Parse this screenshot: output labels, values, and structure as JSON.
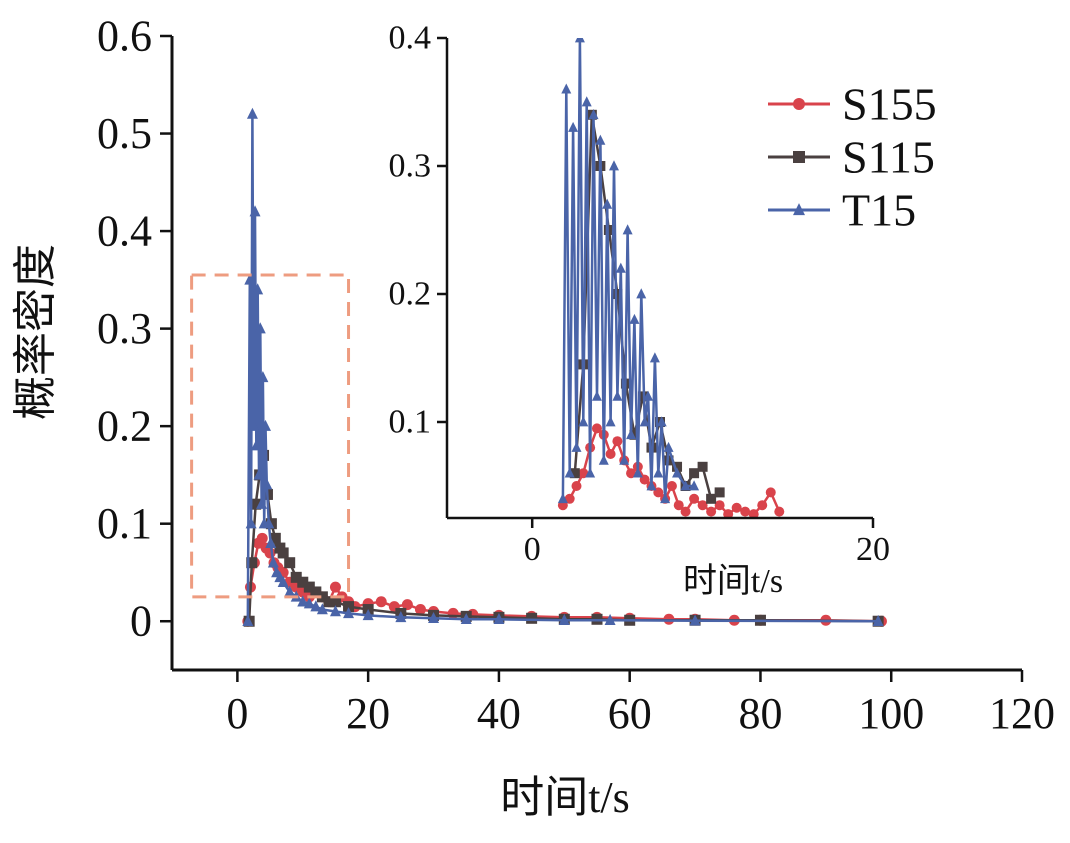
{
  "colors": {
    "S155": "#d9434b",
    "S115": "#4a4040",
    "T15": "#4a64a8",
    "zoom_box": "#ee9c80",
    "axis": "#111111"
  },
  "legend": [
    {
      "label": "S155",
      "marker": "circle"
    },
    {
      "label": "S115",
      "marker": "square"
    },
    {
      "label": "T15",
      "marker": "triangle"
    }
  ],
  "chart_data": [
    {
      "type": "line",
      "xlabel": "时间t/s",
      "ylabel": "概率密度",
      "xlim": [
        -10,
        120
      ],
      "ylim": [
        -0.05,
        0.6
      ],
      "xticks": [
        "0",
        "20",
        "40",
        "60",
        "80",
        "100",
        "120"
      ],
      "yticks": [
        "0",
        "0.1",
        "0.2",
        "0.3",
        "0.4",
        "0.5",
        "0.6"
      ],
      "zoom_region": {
        "x": [
          -7,
          17
        ],
        "y": [
          0.025,
          0.355
        ]
      },
      "series": [
        {
          "name": "S155",
          "marker": "circle",
          "x": [
            1.6,
            2.0,
            2.6,
            3.2,
            3.8,
            4.4,
            5.0,
            5.6,
            6.2,
            7,
            8,
            9,
            10,
            11,
            12,
            13,
            14,
            15,
            16,
            17,
            18,
            20,
            22,
            24,
            26,
            28,
            30,
            33,
            36,
            40,
            45,
            50,
            55,
            60,
            66,
            70,
            76,
            80,
            90,
            98.5
          ],
          "y": [
            0,
            0.035,
            0.06,
            0.08,
            0.085,
            0.075,
            0.07,
            0.06,
            0.055,
            0.05,
            0.04,
            0.035,
            0.03,
            0.025,
            0.03,
            0.025,
            0.02,
            0.035,
            0.025,
            0.02,
            0.015,
            0.018,
            0.02,
            0.015,
            0.017,
            0.012,
            0.01,
            0.008,
            0.007,
            0.006,
            0.005,
            0.004,
            0.004,
            0.003,
            0.002,
            0.002,
            0.001,
            0.001,
            0.001,
            0
          ]
        },
        {
          "name": "S115",
          "marker": "square",
          "x": [
            1.8,
            2.2,
            2.8,
            3.4,
            4.0,
            4.6,
            5.2,
            5.8,
            6.5,
            7,
            8,
            9,
            10,
            11,
            12,
            13,
            14,
            15,
            17,
            20,
            25,
            30,
            35,
            40,
            45,
            50,
            55,
            60,
            70,
            80,
            98
          ],
          "y": [
            0,
            0.06,
            0.12,
            0.15,
            0.17,
            0.13,
            0.1,
            0.085,
            0.075,
            0.07,
            0.06,
            0.045,
            0.04,
            0.035,
            0.03,
            0.025,
            0.02,
            0.02,
            0.015,
            0.012,
            0.008,
            0.006,
            0.005,
            0.004,
            0.003,
            0.002,
            0.002,
            0.001,
            0.001,
            0.001,
            0
          ]
        },
        {
          "name": "T15",
          "marker": "triangle",
          "x": [
            1.6,
            1.9,
            2.1,
            2.3,
            2.5,
            2.7,
            2.9,
            3.1,
            3.3,
            3.5,
            3.7,
            3.9,
            4.1,
            4.3,
            4.5,
            4.8,
            5.1,
            5.5,
            6,
            6.5,
            7,
            8,
            9,
            10,
            11,
            12,
            13,
            15,
            17,
            20,
            25,
            30,
            35,
            40,
            50,
            57,
            70,
            98
          ],
          "y": [
            0,
            0.35,
            0.1,
            0.52,
            0.2,
            0.42,
            0.18,
            0.34,
            0.15,
            0.3,
            0.12,
            0.25,
            0.1,
            0.2,
            0.14,
            0.1,
            0.08,
            0.06,
            0.05,
            0.045,
            0.04,
            0.03,
            0.025,
            0.02,
            0.018,
            0.015,
            0.012,
            0.01,
            0.008,
            0.006,
            0.004,
            0.003,
            0.002,
            0.002,
            0.001,
            0.001,
            0.0005,
            0
          ]
        }
      ]
    },
    {
      "type": "line",
      "xlabel": "时间t/s",
      "ylabel": "",
      "xlim": [
        -5,
        20
      ],
      "ylim": [
        0.025,
        0.4
      ],
      "xticks": [
        "0",
        "20"
      ],
      "yticks": [
        "0.1",
        "0.2",
        "0.3",
        "0.4"
      ],
      "series": [
        {
          "name": "S155",
          "marker": "circle",
          "x": [
            1.8,
            2.2,
            2.6,
            3.0,
            3.4,
            3.8,
            4.2,
            4.6,
            5.0,
            5.4,
            5.8,
            6.2,
            6.6,
            7.0,
            7.4,
            7.8,
            8.2,
            8.6,
            9.0,
            9.5,
            10,
            10.5,
            11,
            11.5,
            12,
            12.5,
            13,
            13.5,
            14,
            14.5
          ],
          "y": [
            0.035,
            0.04,
            0.05,
            0.06,
            0.08,
            0.095,
            0.09,
            0.075,
            0.085,
            0.07,
            0.06,
            0.065,
            0.055,
            0.05,
            0.045,
            0.04,
            0.05,
            0.035,
            0.03,
            0.04,
            0.035,
            0.03,
            0.035,
            0.028,
            0.033,
            0.03,
            0.028,
            0.035,
            0.045,
            0.03
          ]
        },
        {
          "name": "S115",
          "marker": "square",
          "x": [
            2.5,
            3.0,
            3.5,
            4.0,
            4.5,
            5.0,
            5.5,
            6.0,
            6.5,
            7.0,
            7.5,
            8.0,
            8.5,
            9.0,
            9.5,
            10,
            10.5,
            11
          ],
          "y": [
            0.06,
            0.145,
            0.34,
            0.3,
            0.25,
            0.2,
            0.13,
            0.09,
            0.12,
            0.08,
            0.1,
            0.07,
            0.065,
            0.05,
            0.06,
            0.065,
            0.04,
            0.045
          ]
        },
        {
          "name": "T15",
          "marker": "triangle",
          "x": [
            1.8,
            2.0,
            2.2,
            2.4,
            2.6,
            2.8,
            3.0,
            3.2,
            3.4,
            3.6,
            3.8,
            4.0,
            4.2,
            4.4,
            4.6,
            4.8,
            5.0,
            5.2,
            5.4,
            5.6,
            5.8,
            6.0,
            6.2,
            6.4,
            6.6,
            6.8,
            7.0,
            7.2,
            7.4,
            7.6,
            7.8,
            8.0,
            8.5,
            9.0,
            9.5
          ],
          "y": [
            0.04,
            0.36,
            0.06,
            0.33,
            0.08,
            0.4,
            0.1,
            0.35,
            0.06,
            0.34,
            0.12,
            0.32,
            0.07,
            0.27,
            0.1,
            0.3,
            0.12,
            0.22,
            0.07,
            0.25,
            0.09,
            0.18,
            0.06,
            0.2,
            0.1,
            0.12,
            0.05,
            0.15,
            0.06,
            0.1,
            0.04,
            0.08,
            0.06,
            0.05,
            0.05
          ]
        }
      ]
    }
  ]
}
